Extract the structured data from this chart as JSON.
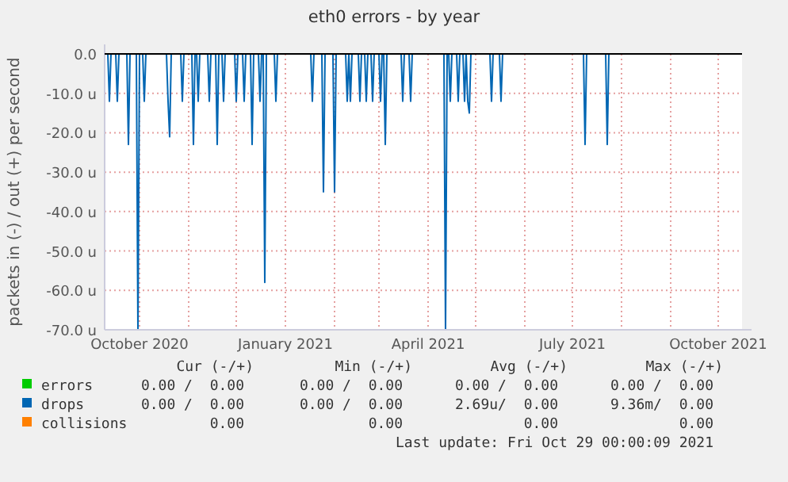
{
  "chart_data": {
    "type": "line",
    "title": "eth0 errors - by year",
    "ylabel": "packets in (-) / out (+) per second",
    "xlim": [
      "2020-09-09",
      "2021-10-16"
    ],
    "xticks": [
      {
        "value": "2020-10-01",
        "label": "October 2020"
      },
      {
        "value": "2020-11-01",
        "label": null
      },
      {
        "value": "2020-12-01",
        "label": null
      },
      {
        "value": "2021-01-01",
        "label": "January 2021"
      },
      {
        "value": "2021-02-01",
        "label": null
      },
      {
        "value": "2021-03-01",
        "label": null
      },
      {
        "value": "2021-04-01",
        "label": "April 2021"
      },
      {
        "value": "2021-05-01",
        "label": null
      },
      {
        "value": "2021-06-01",
        "label": null
      },
      {
        "value": "2021-07-01",
        "label": "July 2021"
      },
      {
        "value": "2021-08-01",
        "label": null
      },
      {
        "value": "2021-09-01",
        "label": null
      },
      {
        "value": "2021-10-01",
        "label": "October 2021"
      }
    ],
    "ylim": [
      -70,
      0
    ],
    "yticks": [
      {
        "value": -70,
        "label": "-70.0 u"
      },
      {
        "value": -60,
        "label": "-60.0 u"
      },
      {
        "value": -50,
        "label": "-50.0 u"
      },
      {
        "value": -40,
        "label": "-40.0 u"
      },
      {
        "value": -30,
        "label": "-30.0 u"
      },
      {
        "value": -20,
        "label": "-20.0 u"
      },
      {
        "value": -10,
        "label": "-10.0 u"
      },
      {
        "value": 0,
        "label": "0.0"
      }
    ],
    "grid": true,
    "legend": "bottom",
    "series": [
      {
        "name": "errors",
        "color": "#00cc00"
      },
      {
        "name": "drops",
        "color": "#0066b3",
        "x": [
          "2020-09-09",
          "2020-09-11",
          "2020-09-12",
          "2020-09-13",
          "2020-09-16",
          "2020-09-17",
          "2020-09-18",
          "2020-09-23",
          "2020-09-24",
          "2020-09-25",
          "2020-09-29",
          "2020-09-30",
          "2020-10-01",
          "2020-10-03",
          "2020-10-04",
          "2020-10-05",
          "2020-10-18",
          "2020-10-19",
          "2020-10-20",
          "2020-10-21",
          "2020-10-27",
          "2020-10-28",
          "2020-10-29",
          "2020-11-03",
          "2020-11-04",
          "2020-11-05",
          "2020-11-06",
          "2020-11-07",
          "2020-11-08",
          "2020-11-13",
          "2020-11-14",
          "2020-11-15",
          "2020-11-18",
          "2020-11-19",
          "2020-11-20",
          "2020-11-22",
          "2020-11-23",
          "2020-11-24",
          "2020-11-30",
          "2020-12-01",
          "2020-12-02",
          "2020-12-05",
          "2020-12-06",
          "2020-12-07",
          "2020-12-10",
          "2020-12-11",
          "2020-12-12",
          "2020-12-15",
          "2020-12-16",
          "2020-12-17",
          "2020-12-18",
          "2020-12-19",
          "2020-12-20",
          "2020-12-25",
          "2020-12-26",
          "2020-12-27",
          "2021-01-17",
          "2021-01-18",
          "2021-01-19",
          "2021-01-24",
          "2021-01-25",
          "2021-01-26",
          "2021-01-31",
          "2021-02-01",
          "2021-02-02",
          "2021-02-08",
          "2021-02-09",
          "2021-02-10",
          "2021-02-11",
          "2021-02-12",
          "2021-02-16",
          "2021-02-17",
          "2021-02-18",
          "2021-02-20",
          "2021-02-21",
          "2021-02-22",
          "2021-02-24",
          "2021-02-25",
          "2021-02-26",
          "2021-03-01",
          "2021-03-02",
          "2021-03-03",
          "2021-03-04",
          "2021-03-05",
          "2021-03-06",
          "2021-03-15",
          "2021-03-16",
          "2021-03-17",
          "2021-03-20",
          "2021-03-21",
          "2021-03-22",
          "2021-04-11",
          "2021-04-12",
          "2021-04-13",
          "2021-04-14",
          "2021-04-15",
          "2021-04-16",
          "2021-04-19",
          "2021-04-20",
          "2021-04-21",
          "2021-04-23",
          "2021-04-24",
          "2021-04-25",
          "2021-04-26",
          "2021-04-27",
          "2021-04-28",
          "2021-05-10",
          "2021-05-11",
          "2021-05-12",
          "2021-05-16",
          "2021-05-17",
          "2021-05-18",
          "2021-07-08",
          "2021-07-09",
          "2021-07-10",
          "2021-07-22",
          "2021-07-23",
          "2021-07-24",
          "2021-10-16"
        ],
        "values": [
          0,
          0,
          -12,
          0,
          0,
          -12,
          0,
          0,
          -23,
          0,
          0,
          -70,
          0,
          0,
          -12,
          0,
          0,
          -12,
          -21,
          0,
          0,
          -12,
          0,
          0,
          -23,
          0,
          0,
          -12,
          0,
          0,
          -12,
          0,
          0,
          -23,
          0,
          0,
          -12,
          0,
          0,
          -12,
          0,
          0,
          -12,
          0,
          0,
          -23,
          0,
          0,
          -12,
          0,
          0,
          -58,
          0,
          0,
          -12,
          0,
          0,
          -12,
          0,
          0,
          -35,
          0,
          0,
          -35,
          0,
          0,
          -12,
          0,
          -12,
          0,
          0,
          -12,
          0,
          0,
          -12,
          0,
          0,
          -12,
          0,
          0,
          -12,
          0,
          0,
          -23,
          0,
          0,
          -12,
          0,
          0,
          -12,
          0,
          0,
          -70,
          0,
          0,
          -12,
          0,
          0,
          -12,
          0,
          0,
          -12,
          0,
          -12,
          -15,
          0,
          0,
          -12,
          0,
          0,
          -12,
          0,
          0,
          -23,
          0,
          0,
          -23,
          0,
          0
        ]
      },
      {
        "name": "collisions",
        "color": "#ff8000"
      }
    ],
    "annotations": [
      "Cur (-/+)",
      "Min (-/+)",
      "Avg (-/+)",
      "Max (-/+)",
      "0.00 /  0.00",
      "0.00 /  0.00",
      "0.00 /  0.00",
      "0.00 /  0.00",
      "0.00 /  0.00",
      "0.00 /  0.00",
      "2.69u/  0.00",
      "9.36m/  0.00",
      "0.00",
      "0.00",
      "0.00",
      "0.00",
      "Last update: Fri Oct 29 00:00:09 2021"
    ]
  }
}
